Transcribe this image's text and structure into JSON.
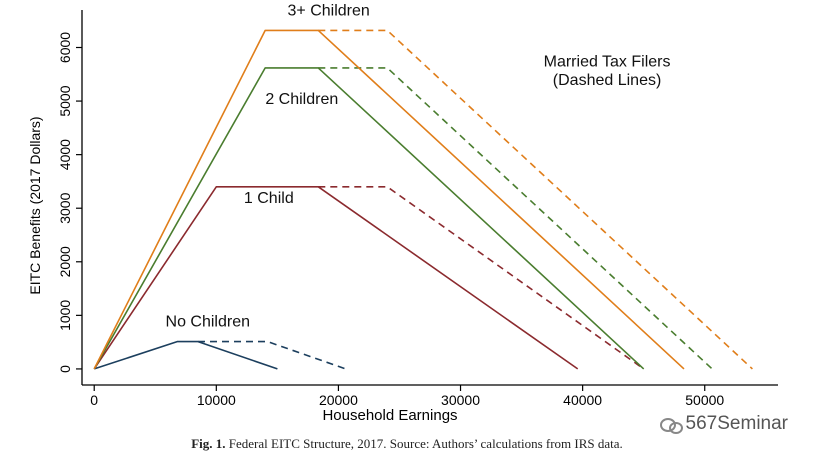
{
  "chart_data": {
    "type": "line",
    "xlabel": "Household Earnings",
    "ylabel": "EITC Benefits (2017 Dollars)",
    "xlim": [
      -1000,
      56000
    ],
    "ylim": [
      -300,
      6700
    ],
    "xticks": [
      0,
      10000,
      20000,
      30000,
      40000,
      50000
    ],
    "yticks": [
      0,
      1000,
      2000,
      3000,
      4000,
      5000,
      6000
    ],
    "xtick_labels": [
      "0",
      "10000",
      "20000",
      "30000",
      "40000",
      "50000"
    ],
    "ytick_labels": [
      "0",
      "1000",
      "2000",
      "3000",
      "4000",
      "5000",
      "6000"
    ],
    "series": [
      {
        "name": "No Children (single)",
        "color": "#1c3f5e",
        "dashed": false,
        "x": [
          0,
          6800,
          8500,
          15000
        ],
        "y": [
          0,
          510,
          510,
          0
        ]
      },
      {
        "name": "No Children (married)",
        "color": "#1c3f5e",
        "dashed": true,
        "x": [
          8500,
          14200,
          20600
        ],
        "y": [
          510,
          510,
          0
        ]
      },
      {
        "name": "1 Child (single)",
        "color": "#8b2a2e",
        "dashed": false,
        "x": [
          0,
          10000,
          18350,
          39600
        ],
        "y": [
          0,
          3400,
          3400,
          0
        ]
      },
      {
        "name": "1 Child (married)",
        "color": "#8b2a2e",
        "dashed": true,
        "x": [
          18350,
          24000,
          45000
        ],
        "y": [
          3400,
          3400,
          0
        ]
      },
      {
        "name": "2 Children (single)",
        "color": "#4a7d2f",
        "dashed": false,
        "x": [
          0,
          14000,
          18350,
          45000
        ],
        "y": [
          0,
          5620,
          5620,
          0
        ]
      },
      {
        "name": "2 Children (married)",
        "color": "#4a7d2f",
        "dashed": true,
        "x": [
          18350,
          24000,
          50600
        ],
        "y": [
          5620,
          5620,
          0
        ]
      },
      {
        "name": "3+ Children (single)",
        "color": "#e07e1a",
        "dashed": false,
        "x": [
          0,
          14000,
          18350,
          48300
        ],
        "y": [
          0,
          6320,
          6320,
          0
        ]
      },
      {
        "name": "3+ Children (married)",
        "color": "#e07e1a",
        "dashed": true,
        "x": [
          18350,
          24000,
          53900
        ],
        "y": [
          6320,
          6320,
          0
        ]
      }
    ],
    "annotations": [
      {
        "text": "3+ Children",
        "x": 19200,
        "y": 6600
      },
      {
        "text": "2 Children",
        "x": 17000,
        "y": 4950
      },
      {
        "text": "Married Tax Filers",
        "x": 42000,
        "y": 5650
      },
      {
        "text": "(Dashed Lines)",
        "x": 42000,
        "y": 5300
      },
      {
        "text": "1 Child",
        "x": 14300,
        "y": 3100
      },
      {
        "text": "No Children",
        "x": 9300,
        "y": 790
      }
    ]
  },
  "caption": {
    "label": "Fig. 1.",
    "text": "Federal EITC Structure, 2017. Source: Authors’ calculations from IRS data."
  },
  "watermark": "567Seminar"
}
